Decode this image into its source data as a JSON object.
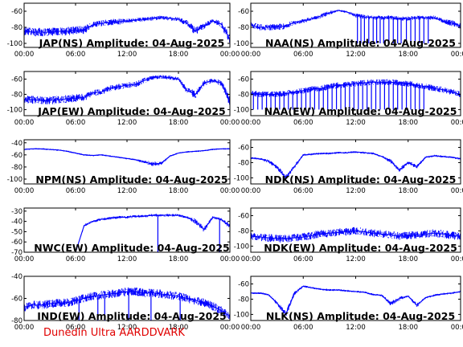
{
  "footer": "Dunedin Ultra AARDDVARK",
  "colors": {
    "trace": "#0000ff",
    "axes": "#000000",
    "footer": "#e00000"
  },
  "chart_data": [
    {
      "type": "line",
      "title": "JAP(NS) Amplitude: 04-Aug-2025",
      "xticks": [
        "00:00",
        "06:00",
        "12:00",
        "18:00",
        "00:00"
      ],
      "xlim": [
        0,
        24
      ],
      "ylim": [
        -105,
        -50
      ],
      "yticks": [
        -60,
        -80,
        -100
      ],
      "ytick_labels": [
        "-60",
        "-80",
        "-100"
      ],
      "series": [
        {
          "x": [
            0,
            1,
            2,
            3,
            4,
            5,
            6,
            7,
            8,
            9,
            10,
            11,
            12,
            13,
            14,
            15,
            16,
            17,
            18,
            19,
            20,
            21,
            22,
            23,
            24
          ],
          "y": [
            -85,
            -86,
            -86,
            -86,
            -85,
            -85,
            -84,
            -83,
            -77,
            -75,
            -74,
            -73,
            -72,
            -71,
            -70,
            -69,
            -68,
            -69,
            -70,
            -75,
            -85,
            -78,
            -72,
            -76,
            -95
          ],
          "noise": [
            4,
            4,
            4,
            4,
            4,
            4,
            4,
            4,
            3,
            3,
            3,
            3,
            2,
            2,
            2,
            2,
            2,
            2,
            2,
            3,
            4,
            3,
            2,
            3,
            5
          ]
        }
      ]
    },
    {
      "type": "line",
      "title": "NAA(NS) Amplitude: 04-Aug-2025",
      "xticks": [
        "00:00",
        "06:00",
        "12:00",
        "18:00",
        "00:00"
      ],
      "xlim": [
        0,
        24
      ],
      "ylim": [
        -105,
        -50
      ],
      "yticks": [
        -60,
        -80,
        -100
      ],
      "ytick_labels": [
        "-60",
        "-80",
        "-100"
      ],
      "series": [
        {
          "x": [
            0,
            1,
            2,
            3,
            4,
            5,
            6,
            7,
            8,
            9,
            10,
            11,
            12,
            13,
            14,
            15,
            16,
            17,
            18,
            19,
            20,
            21,
            22,
            23,
            24
          ],
          "y": [
            -77,
            -80,
            -80,
            -80,
            -78,
            -74,
            -72,
            -69,
            -66,
            -62,
            -59,
            -61,
            -65,
            -67,
            -68,
            -68,
            -68,
            -69,
            -69,
            -68,
            -68,
            -68,
            -72,
            -75,
            -78
          ],
          "noise": [
            3,
            3,
            3,
            3,
            3,
            2,
            2,
            2,
            2,
            2,
            1,
            1,
            2,
            2,
            2,
            2,
            2,
            2,
            2,
            2,
            2,
            2,
            2,
            3,
            3
          ],
          "dropouts": [
            12.2,
            12.6,
            13.0,
            13.5,
            14.0,
            14.4,
            14.8,
            15.2,
            15.8,
            16.3,
            16.8,
            17.2,
            17.8,
            18.3,
            18.8,
            19.3,
            19.8,
            20.3
          ],
          "dropout_floor": -100
        }
      ]
    },
    {
      "type": "line",
      "title": "JAP(EW) Amplitude: 04-Aug-2025",
      "xticks": [
        "00:00",
        "06:00",
        "12:00",
        "18:00",
        "00:00"
      ],
      "xlim": [
        0,
        24
      ],
      "ylim": [
        -108,
        -50
      ],
      "yticks": [
        -60,
        -80,
        -100
      ],
      "ytick_labels": [
        "-60",
        "-80",
        "-100"
      ],
      "series": [
        {
          "x": [
            0,
            1,
            2,
            3,
            4,
            5,
            6,
            7,
            8,
            9,
            10,
            11,
            12,
            13,
            14,
            15,
            16,
            17,
            18,
            19,
            20,
            21,
            22,
            23,
            24
          ],
          "y": [
            -87,
            -87,
            -88,
            -88,
            -87,
            -86,
            -85,
            -84,
            -78,
            -77,
            -72,
            -70,
            -68,
            -67,
            -62,
            -58,
            -57,
            -58,
            -60,
            -75,
            -80,
            -65,
            -62,
            -65,
            -90
          ],
          "noise": [
            4,
            4,
            4,
            4,
            4,
            4,
            4,
            4,
            3,
            3,
            3,
            3,
            3,
            3,
            3,
            2,
            2,
            2,
            2,
            3,
            4,
            3,
            2,
            3,
            5
          ]
        }
      ]
    },
    {
      "type": "line",
      "title": "NAA(EW) Amplitude: 04-Aug-2025",
      "xticks": [
        "00:00",
        "06:00",
        "12:00",
        "18:00",
        "00:00"
      ],
      "xlim": [
        0,
        24
      ],
      "ylim": [
        -108,
        -50
      ],
      "yticks": [
        -60,
        -80,
        -100
      ],
      "ytick_labels": [
        "-60",
        "-80",
        "-100"
      ],
      "series": [
        {
          "x": [
            0,
            1,
            2,
            3,
            4,
            5,
            6,
            7,
            8,
            9,
            10,
            11,
            12,
            13,
            14,
            15,
            16,
            17,
            18,
            19,
            20,
            21,
            22,
            23,
            24
          ],
          "y": [
            -78,
            -80,
            -80,
            -80,
            -79,
            -77,
            -75,
            -73,
            -72,
            -70,
            -68,
            -67,
            -66,
            -65,
            -64,
            -64,
            -64,
            -65,
            -66,
            -68,
            -70,
            -72,
            -74,
            -77,
            -80
          ],
          "noise": [
            3,
            3,
            3,
            3,
            3,
            3,
            3,
            3,
            3,
            3,
            3,
            3,
            3,
            3,
            3,
            3,
            3,
            3,
            3,
            3,
            3,
            3,
            3,
            3,
            3
          ],
          "dropouts": [
            0.3,
            0.8,
            1.3,
            1.8,
            2.3,
            2.8,
            3.3,
            3.8,
            4.3,
            4.8,
            5.3,
            5.8,
            6.3,
            6.8,
            7.3,
            7.8,
            8.3,
            8.8,
            9.3,
            9.8,
            10.3,
            10.8,
            11.3,
            11.8,
            12.3,
            12.8,
            13.3,
            13.8,
            14.3,
            14.8,
            15.3,
            15.8,
            16.3,
            16.8,
            17.3,
            17.8,
            18.3,
            18.8,
            19.3,
            19.8
          ],
          "dropout_floor": -100
        }
      ]
    },
    {
      "type": "line",
      "title": "NPM(NS) Amplitude: 04-Aug-2025",
      "xticks": [
        "00:00",
        "06:00",
        "12:00",
        "18:00",
        "00:00"
      ],
      "xlim": [
        0,
        24
      ],
      "ylim": [
        -108,
        -35
      ],
      "yticks": [
        -40,
        -60,
        -80,
        -100
      ],
      "ytick_labels": [
        "-40",
        "-60",
        "-80",
        "-100"
      ],
      "series": [
        {
          "x": [
            0,
            1,
            2,
            3,
            4,
            5,
            6,
            7,
            8,
            9,
            10,
            11,
            12,
            13,
            14,
            15,
            16,
            17,
            18,
            19,
            20,
            21,
            22,
            23,
            24
          ],
          "y": [
            -51,
            -50,
            -50,
            -51,
            -52,
            -54,
            -57,
            -60,
            -61,
            -60,
            -62,
            -64,
            -66,
            -68,
            -72,
            -75,
            -74,
            -62,
            -57,
            -55,
            -54,
            -53,
            -51,
            -50,
            -50
          ],
          "noise": [
            1,
            1,
            1,
            1,
            1,
            1,
            1,
            1,
            1,
            1,
            1,
            1,
            1,
            1,
            2,
            3,
            2,
            1,
            1,
            1,
            1,
            1,
            1,
            1,
            1
          ]
        }
      ]
    },
    {
      "type": "line",
      "title": "NDK(NS) Amplitude: 04-Aug-2025",
      "xticks": [
        "00:00",
        "06:00",
        "12:00",
        "18:00",
        "00:00"
      ],
      "xlim": [
        0,
        24
      ],
      "ylim": [
        -108,
        -50
      ],
      "yticks": [
        -60,
        -80,
        -100
      ],
      "ytick_labels": [
        "-60",
        "-80",
        "-100"
      ],
      "series": [
        {
          "x": [
            0,
            1,
            2,
            3,
            4,
            5,
            6,
            7,
            8,
            9,
            10,
            11,
            12,
            13,
            14,
            15,
            16,
            17,
            18,
            19,
            20,
            21,
            22,
            23,
            24
          ],
          "y": [
            -74,
            -75,
            -78,
            -86,
            -100,
            -85,
            -70,
            -69,
            -68,
            -68,
            -67,
            -67,
            -66,
            -67,
            -68,
            -72,
            -78,
            -90,
            -80,
            -85,
            -73,
            -71,
            -72,
            -73,
            -75
          ],
          "noise": [
            1,
            1,
            2,
            2,
            3,
            2,
            1,
            1,
            1,
            1,
            1,
            1,
            1,
            1,
            1,
            1,
            2,
            2,
            2,
            2,
            1,
            1,
            1,
            1,
            1
          ]
        }
      ]
    },
    {
      "type": "line",
      "title": "NWC(EW) Amplitude: 04-Aug-2025",
      "xticks": [
        "00:00",
        "06:00",
        "12:00",
        "18:00",
        "00:00"
      ],
      "xlim": [
        0,
        24
      ],
      "ylim": [
        -70,
        -27
      ],
      "yticks": [
        -30,
        -40,
        -50,
        -60,
        -70
      ],
      "ytick_labels": [
        "-30",
        "-40",
        "-50",
        "-60",
        "-70"
      ],
      "series": [
        {
          "x": [
            0,
            1,
            2,
            3,
            4,
            5,
            6,
            7,
            8,
            9,
            10,
            11,
            12,
            13,
            14,
            15,
            16,
            17,
            18,
            19,
            20,
            21,
            22,
            23,
            24
          ],
          "y": [
            -70,
            -70,
            -70,
            -70,
            -70,
            -70,
            -70,
            -44,
            -40,
            -38,
            -37,
            -36,
            -36,
            -35,
            -35,
            -34,
            -34,
            -34,
            -34,
            -36,
            -40,
            -48,
            -36,
            -38,
            -45
          ],
          "noise": [
            0,
            0,
            0,
            0,
            0,
            0,
            0,
            1,
            1,
            1,
            1,
            1,
            1,
            1,
            1,
            1,
            1,
            1,
            1,
            1,
            2,
            2,
            1,
            1,
            2
          ],
          "dropouts": [
            15.6,
            22.8
          ],
          "dropout_floor": -70
        }
      ]
    },
    {
      "type": "line",
      "title": "NDK(EW) Amplitude: 04-Aug-2025",
      "xticks": [
        "00:00",
        "06:00",
        "12:00",
        "18:00",
        "00:00"
      ],
      "xlim": [
        0,
        24
      ],
      "ylim": [
        -108,
        -50
      ],
      "yticks": [
        -60,
        -80,
        -100
      ],
      "ytick_labels": [
        "-60",
        "-80",
        "-100"
      ],
      "series": [
        {
          "x": [
            0,
            1,
            2,
            3,
            4,
            5,
            6,
            7,
            8,
            9,
            10,
            11,
            12,
            13,
            14,
            15,
            16,
            17,
            18,
            19,
            20,
            21,
            22,
            23,
            24
          ],
          "y": [
            -87,
            -88,
            -89,
            -90,
            -90,
            -89,
            -88,
            -86,
            -84,
            -83,
            -82,
            -81,
            -80,
            -81,
            -83,
            -84,
            -85,
            -87,
            -86,
            -85,
            -84,
            -83,
            -84,
            -86,
            -87
          ],
          "noise": [
            4,
            4,
            4,
            4,
            4,
            4,
            4,
            4,
            4,
            4,
            4,
            4,
            4,
            4,
            4,
            4,
            4,
            4,
            4,
            4,
            4,
            4,
            4,
            4,
            4
          ]
        }
      ]
    },
    {
      "type": "line",
      "title": "IND(EW) Amplitude: 04-Aug-2025",
      "xticks": [
        "00:00",
        "06:00",
        "12:00",
        "18:00",
        "00:00"
      ],
      "xlim": [
        0,
        24
      ],
      "ylim": [
        -80,
        -40
      ],
      "yticks": [
        -40,
        -60,
        -80
      ],
      "ytick_labels": [
        "-40",
        "-60",
        "-80"
      ],
      "series": [
        {
          "x": [
            0,
            1,
            2,
            3,
            4,
            5,
            6,
            7,
            8,
            9,
            10,
            11,
            12,
            13,
            14,
            15,
            16,
            17,
            18,
            19,
            20,
            21,
            22,
            23,
            24
          ],
          "y": [
            -68,
            -66,
            -66,
            -65,
            -64,
            -64,
            -62,
            -60,
            -58,
            -57,
            -56,
            -55,
            -54,
            -54,
            -55,
            -55,
            -56,
            -57,
            -58,
            -60,
            -62,
            -64,
            -67,
            -71,
            -76
          ],
          "noise": [
            3,
            3,
            3,
            3,
            3,
            3,
            3,
            3,
            3,
            3,
            3,
            3,
            3,
            3,
            3,
            3,
            3,
            3,
            3,
            3,
            3,
            3,
            3,
            3,
            3
          ],
          "dropouts": [
            6.4,
            8.6,
            9.4,
            12.2,
            14.8,
            18.2
          ],
          "dropout_floor": -80
        }
      ]
    },
    {
      "type": "line",
      "title": "NLK(NS) Amplitude: 04-Aug-2025",
      "xticks": [
        "00:00",
        "06:00",
        "12:00",
        "18:00",
        "00:00"
      ],
      "xlim": [
        0,
        24
      ],
      "ylim": [
        -108,
        -50
      ],
      "yticks": [
        -60,
        -80,
        -100
      ],
      "ytick_labels": [
        "-60",
        "-80",
        "-100"
      ],
      "series": [
        {
          "x": [
            0,
            1,
            2,
            3,
            4,
            5,
            6,
            7,
            8,
            9,
            10,
            11,
            12,
            13,
            14,
            15,
            16,
            17,
            18,
            19,
            20,
            21,
            22,
            23,
            24
          ],
          "y": [
            -72,
            -72,
            -74,
            -85,
            -100,
            -72,
            -63,
            -65,
            -67,
            -68,
            -68,
            -69,
            -70,
            -71,
            -74,
            -75,
            -86,
            -79,
            -76,
            -88,
            -78,
            -75,
            -73,
            -72,
            -70
          ],
          "noise": [
            1,
            1,
            1,
            2,
            3,
            2,
            1,
            1,
            1,
            1,
            1,
            1,
            1,
            1,
            1,
            1,
            2,
            2,
            1,
            2,
            1,
            1,
            1,
            1,
            1
          ]
        }
      ]
    }
  ]
}
